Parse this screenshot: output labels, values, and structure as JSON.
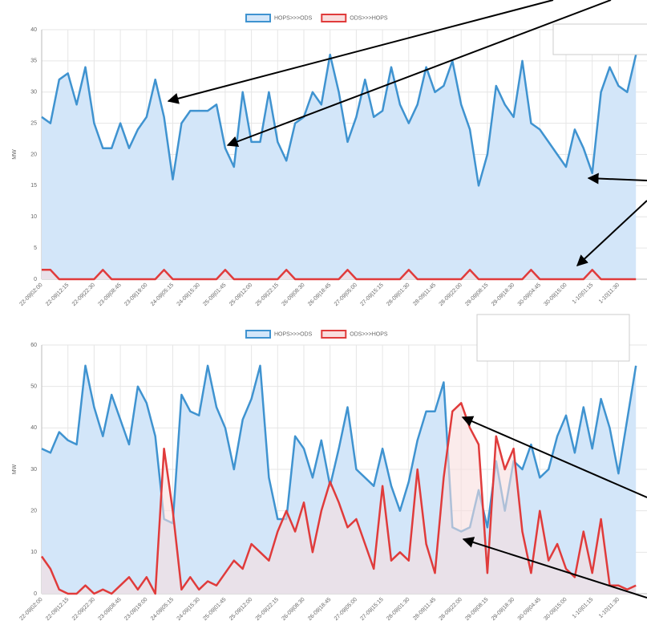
{
  "chart_data": [
    {
      "type": "line",
      "ylabel": "MW",
      "categories": [
        "22-09|02:00",
        null,
        null,
        "22-09|12:15",
        null,
        null,
        "22-09|22:30",
        null,
        null,
        "23-09|08:45",
        null,
        null,
        "23-09|19:00",
        null,
        null,
        "24-09|05:15",
        null,
        null,
        "24-09|15:30",
        null,
        null,
        "25-09|01:45",
        null,
        null,
        "25-09|12:00",
        null,
        null,
        "25-09|22:15",
        null,
        null,
        "26-09|08:30",
        null,
        null,
        "26-09|18:45",
        null,
        null,
        "27-09|05:00",
        null,
        null,
        "27-09|15:15",
        null,
        null,
        "28-09|01:30",
        null,
        null,
        "28-09|11:45",
        null,
        null,
        "28-09|22:00",
        null,
        null,
        "29-09|08:15",
        null,
        null,
        "29-09|18:30",
        null,
        null,
        "30-09|04:45",
        null,
        null,
        "30-09|15:00",
        null,
        null,
        "1-10|01:15",
        null,
        null,
        "1-10|11:30",
        null,
        null
      ],
      "series": [
        {
          "name": "HOPS>>>ODS",
          "color": "#3f93d0",
          "fill": "#d3e6f9",
          "values": [
            26,
            25,
            32,
            33,
            28,
            34,
            25,
            21,
            21,
            25,
            21,
            24,
            26,
            32,
            26,
            16,
            25,
            27,
            27,
            27,
            28,
            21,
            18,
            30,
            22,
            22,
            30,
            22,
            19,
            25,
            26,
            30,
            28,
            36,
            30,
            22,
            26,
            32,
            26,
            27,
            34,
            28,
            25,
            28,
            34,
            30,
            31,
            35,
            28,
            24,
            15,
            20,
            31,
            28,
            26,
            35,
            25,
            24,
            22,
            20,
            18,
            24,
            21,
            17,
            30,
            34,
            31,
            30,
            36
          ]
        },
        {
          "name": "ODS>>>HOPS",
          "color": "#e03b3b",
          "fill": "#f9dede",
          "values": [
            1.5,
            1.5,
            0,
            0,
            0,
            0,
            0,
            1.5,
            0,
            0,
            0,
            0,
            0,
            0,
            1.5,
            0,
            0,
            0,
            0,
            0,
            0,
            1.5,
            0,
            0,
            0,
            0,
            0,
            0,
            1.5,
            0,
            0,
            0,
            0,
            0,
            0,
            1.5,
            0,
            0,
            0,
            0,
            0,
            0,
            1.5,
            0,
            0,
            0,
            0,
            0,
            0,
            1.5,
            0,
            0,
            0,
            0,
            0,
            0,
            1.5,
            0,
            0,
            0,
            0,
            0,
            0,
            1.5,
            0,
            0,
            0,
            0,
            0
          ]
        }
      ],
      "ylim": [
        0,
        40
      ],
      "yticks": [
        0,
        5,
        10,
        15,
        20,
        25,
        30,
        35,
        40
      ],
      "grid": true
    },
    {
      "type": "line",
      "ylabel": "MW",
      "categories": [
        "22-09|02:00",
        null,
        null,
        "22-09|12:15",
        null,
        null,
        "22-09|22:30",
        null,
        null,
        "23-09|08:45",
        null,
        null,
        "23-09|19:00",
        null,
        null,
        "24-09|05:15",
        null,
        null,
        "24-09|15:30",
        null,
        null,
        "25-09|01:45",
        null,
        null,
        "25-09|12:00",
        null,
        null,
        "25-09|22:15",
        null,
        null,
        "26-09|08:30",
        null,
        null,
        "26-09|18:45",
        null,
        null,
        "27-09|05:00",
        null,
        null,
        "27-09|15:15",
        null,
        null,
        "28-09|01:30",
        null,
        null,
        "28-09|11:45",
        null,
        null,
        "28-09|22:00",
        null,
        null,
        "29-09|08:15",
        null,
        null,
        "29-09|18:30",
        null,
        null,
        "30-09|04:45",
        null,
        null,
        "30-09|15:00",
        null,
        null,
        "1-10|01:15",
        null,
        null,
        "1-10|11:30",
        null,
        null
      ],
      "series": [
        {
          "name": "HOPS>>>ODS",
          "color": "#3f93d0",
          "fill": "#d3e6f9",
          "values": [
            35,
            34,
            39,
            37,
            36,
            55,
            45,
            38,
            48,
            42,
            36,
            50,
            46,
            38,
            18,
            17,
            48,
            44,
            43,
            55,
            45,
            40,
            30,
            42,
            47,
            55,
            28,
            18,
            18,
            38,
            35,
            28,
            37,
            26,
            35,
            45,
            30,
            28,
            26,
            35,
            26,
            20,
            27,
            37,
            44,
            44,
            51,
            16,
            15,
            16,
            25,
            16,
            32,
            20,
            32,
            30,
            36,
            28,
            30,
            38,
            43,
            34,
            45,
            35,
            47,
            40,
            29,
            42,
            55
          ]
        },
        {
          "name": "ODS>>>HOPS",
          "color": "#e03b3b",
          "fill": "#f9dede",
          "values": [
            9,
            6,
            1,
            0,
            0,
            2,
            0,
            1,
            0,
            2,
            4,
            1,
            4,
            0,
            35,
            20,
            1,
            4,
            1,
            3,
            2,
            5,
            8,
            6,
            12,
            10,
            8,
            15,
            20,
            15,
            22,
            10,
            20,
            27,
            22,
            16,
            18,
            12,
            6,
            26,
            8,
            10,
            8,
            30,
            12,
            5,
            28,
            44,
            46,
            40,
            36,
            5,
            38,
            30,
            35,
            15,
            5,
            20,
            8,
            12,
            6,
            4,
            15,
            5,
            18,
            2,
            2,
            1,
            2
          ]
        }
      ],
      "ylim": [
        0,
        60
      ],
      "yticks": [
        0,
        10,
        20,
        30,
        40,
        50,
        60
      ],
      "grid": true
    }
  ]
}
